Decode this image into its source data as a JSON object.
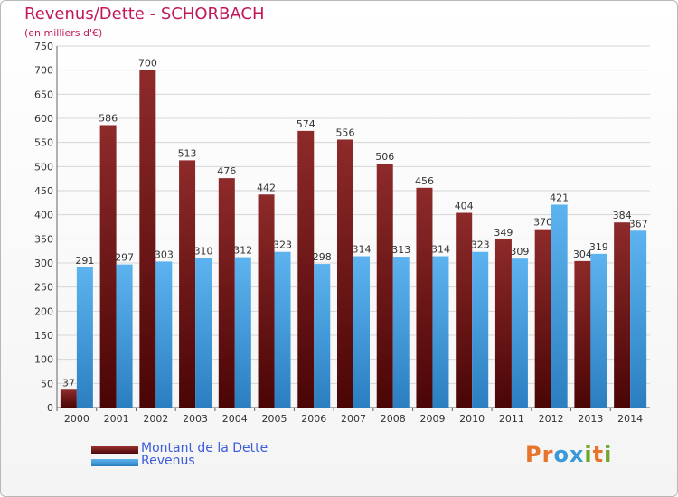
{
  "chart_data": {
    "type": "bar",
    "title": "Revenus/Dette - SCHORBACH",
    "subtitle": "(en milliers d'€)",
    "categories": [
      "2000",
      "2001",
      "2002",
      "2003",
      "2004",
      "2005",
      "2006",
      "2007",
      "2008",
      "2009",
      "2010",
      "2011",
      "2012",
      "2013",
      "2014"
    ],
    "series": [
      {
        "name": "Montant de la Dette",
        "color": "#7a1a1a",
        "values": [
          37,
          586,
          700,
          513,
          476,
          442,
          574,
          556,
          506,
          456,
          404,
          349,
          370,
          304,
          384
        ]
      },
      {
        "name": "Revenus",
        "color": "#3a9ad9",
        "values": [
          291,
          297,
          303,
          310,
          312,
          323,
          298,
          314,
          313,
          314,
          323,
          309,
          421,
          319,
          367
        ]
      }
    ],
    "ylim": [
      0,
      750
    ],
    "yticks": [
      0,
      50,
      100,
      150,
      200,
      250,
      300,
      350,
      400,
      450,
      500,
      550,
      600,
      650,
      700,
      750
    ],
    "grid": true,
    "legend": "bottom-left"
  },
  "logo": {
    "text": "Proxiti"
  }
}
